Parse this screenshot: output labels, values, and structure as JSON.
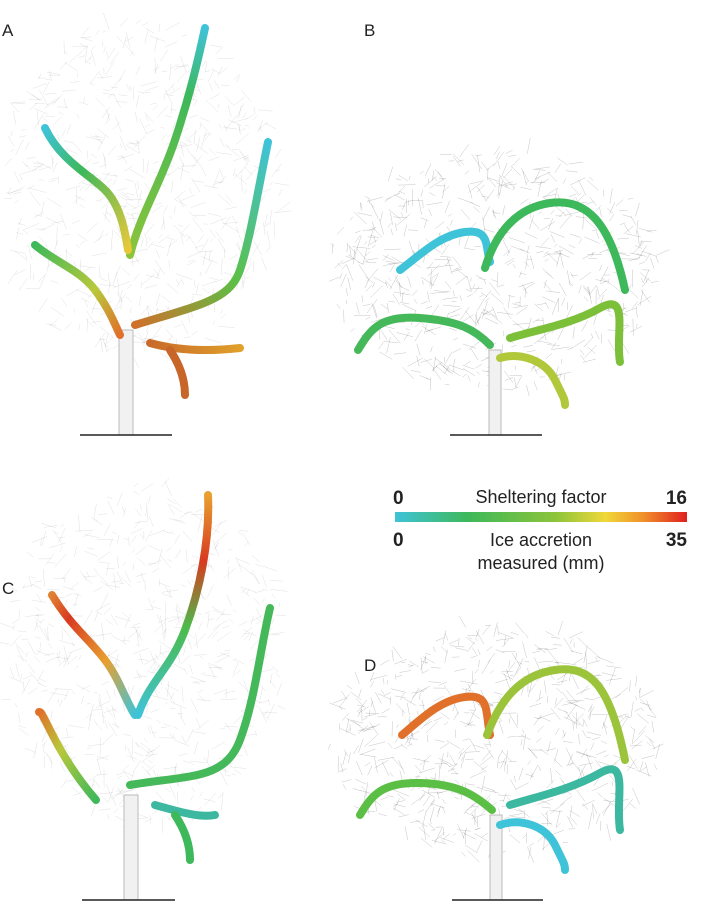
{
  "panels": [
    {
      "label": "A"
    },
    {
      "label": "B"
    },
    {
      "label": "C"
    },
    {
      "label": "D"
    }
  ],
  "colorbar": {
    "top": {
      "title": "Sheltering factor",
      "min": 0,
      "max": 16
    },
    "bottom": {
      "title_lines": [
        "Ice accretion",
        "measured (mm)"
      ],
      "min": 0,
      "max": 35
    }
  }
}
